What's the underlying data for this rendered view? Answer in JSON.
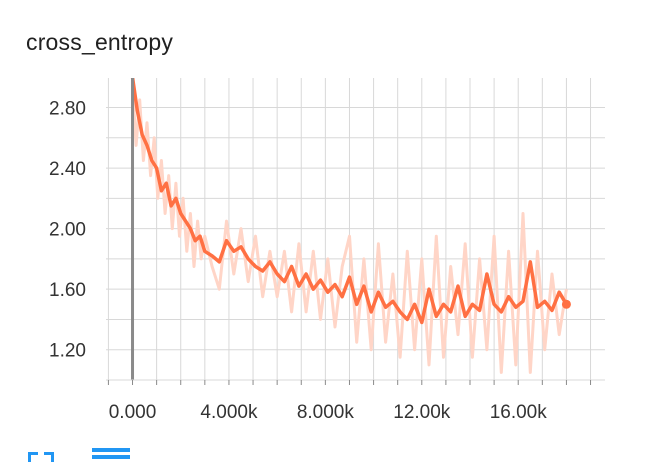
{
  "card": {
    "title": "cross_entropy"
  },
  "toolbar": {
    "expand_icon": "expand-icon",
    "data_icon": "data-table-icon",
    "accent_color": "#2196f3"
  },
  "chart_data": {
    "type": "line",
    "title": "cross_entropy",
    "xlabel": "",
    "ylabel": "",
    "xlim": [
      -1100,
      19600
    ],
    "ylim": [
      1.0,
      2.995
    ],
    "x_ticks": [
      0,
      4000,
      8000,
      12000,
      16000
    ],
    "x_tick_labels": [
      "0.000",
      "4.000k",
      "8.000k",
      "12.00k",
      "16.00k"
    ],
    "y_ticks": [
      1.2,
      1.6,
      2.0,
      2.4,
      2.8
    ],
    "y_tick_labels": [
      "1.20",
      "1.60",
      "2.00",
      "2.40",
      "2.80"
    ],
    "grid": true,
    "colors": {
      "smoothed": "#ff7043",
      "raw": "#ffd5c7",
      "grid": "#d8d8d8",
      "axis": "#8a8a8a"
    },
    "series": [
      {
        "role": "smoothed",
        "x": [
          0,
          200,
          400,
          600,
          800,
          1000,
          1200,
          1400,
          1600,
          1800,
          2000,
          2200,
          2400,
          2600,
          2800,
          3000,
          3300,
          3600,
          3900,
          4200,
          4500,
          4800,
          5100,
          5400,
          5700,
          6000,
          6300,
          6600,
          6900,
          7200,
          7500,
          7800,
          8100,
          8400,
          8700,
          9000,
          9300,
          9600,
          9900,
          10200,
          10500,
          10800,
          11100,
          11400,
          11700,
          12000,
          12300,
          12600,
          12900,
          13200,
          13500,
          13800,
          14100,
          14400,
          14700,
          15000,
          15300,
          15600,
          15900,
          16200,
          16500,
          16800,
          17100,
          17400,
          17700,
          18000
        ],
        "y": [
          3.0,
          2.78,
          2.62,
          2.55,
          2.45,
          2.4,
          2.25,
          2.3,
          2.15,
          2.2,
          2.1,
          2.05,
          2.0,
          1.92,
          1.95,
          1.85,
          1.82,
          1.78,
          1.92,
          1.85,
          1.88,
          1.8,
          1.75,
          1.72,
          1.78,
          1.7,
          1.65,
          1.75,
          1.62,
          1.7,
          1.6,
          1.66,
          1.58,
          1.63,
          1.55,
          1.68,
          1.5,
          1.62,
          1.45,
          1.58,
          1.48,
          1.52,
          1.45,
          1.4,
          1.5,
          1.38,
          1.6,
          1.42,
          1.5,
          1.45,
          1.62,
          1.42,
          1.5,
          1.46,
          1.7,
          1.5,
          1.45,
          1.55,
          1.48,
          1.52,
          1.78,
          1.48,
          1.52,
          1.46,
          1.58,
          1.5
        ]
      },
      {
        "role": "raw",
        "x": [
          0,
          150,
          300,
          450,
          600,
          750,
          900,
          1050,
          1200,
          1350,
          1500,
          1650,
          1800,
          1950,
          2100,
          2250,
          2400,
          2550,
          2700,
          2850,
          3000,
          3300,
          3600,
          3900,
          4200,
          4500,
          4800,
          5100,
          5400,
          5700,
          6000,
          6300,
          6600,
          6900,
          7200,
          7500,
          7800,
          8100,
          8400,
          8700,
          9000,
          9300,
          9600,
          9900,
          10200,
          10500,
          10800,
          11100,
          11400,
          11700,
          12000,
          12300,
          12600,
          12900,
          13200,
          13500,
          13800,
          14100,
          14400,
          14700,
          15000,
          15300,
          15600,
          15900,
          16200,
          16500,
          16800,
          17100,
          17400,
          17700,
          18000
        ],
        "y": [
          2.95,
          2.55,
          2.85,
          2.45,
          2.7,
          2.35,
          2.6,
          2.2,
          2.45,
          2.1,
          2.35,
          2.0,
          2.3,
          1.95,
          2.2,
          1.85,
          2.1,
          1.75,
          2.05,
          1.8,
          1.95,
          1.75,
          1.6,
          2.05,
          1.7,
          2.0,
          1.65,
          1.95,
          1.55,
          1.85,
          1.55,
          1.85,
          1.45,
          1.9,
          1.45,
          1.85,
          1.4,
          1.8,
          1.35,
          1.75,
          1.95,
          1.25,
          1.8,
          1.2,
          1.9,
          1.25,
          1.7,
          1.15,
          1.85,
          1.2,
          1.8,
          1.1,
          1.95,
          1.15,
          1.75,
          1.3,
          1.9,
          1.15,
          1.8,
          1.2,
          1.95,
          1.05,
          1.85,
          1.1,
          2.1,
          1.05,
          1.85,
          1.2,
          1.7,
          1.3,
          1.6
        ]
      }
    ]
  }
}
